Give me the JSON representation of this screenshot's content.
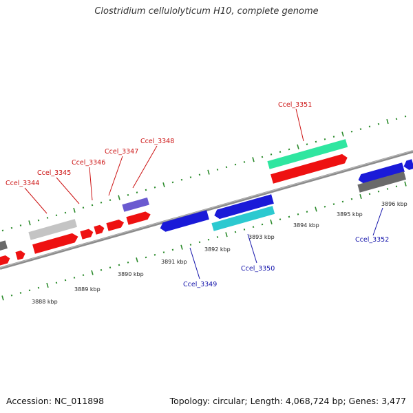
{
  "title": "Clostridium cellulolyticum H10, complete genome",
  "accession_text": "Accession: NC_011898",
  "summary_text": "Topology: circular; Length: 4,068,724 bp; Genes: 3,477",
  "scale_labels": [
    "3888 kbp",
    "3889 kbp",
    "3890 kbp",
    "3891 kbp",
    "3892 kbp",
    "3893 kbp",
    "3894 kbp",
    "3895 kbp",
    "3896 kbp"
  ],
  "colors": {
    "backbone": "#8c8c8c",
    "tick": "#2a8a2a",
    "red": "#ee1111",
    "blue": "#1a1ad8",
    "grey": "#6a6a6a",
    "light_grey": "#c4c4c4",
    "green": "#2fe6a0",
    "cyan": "#2cc9d0",
    "purple": "#6a5ad0",
    "label_red": "#cc1111",
    "label_blue": "#1111aa"
  },
  "gene_labels_top": [
    "Ccel_3344",
    "Ccel_3345",
    "Ccel_3346",
    "Ccel_3347",
    "Ccel_3348",
    "Ccel_3351"
  ],
  "gene_labels_bottom": [
    "Ccel_3349",
    "Ccel_3350",
    "Ccel_3352"
  ]
}
